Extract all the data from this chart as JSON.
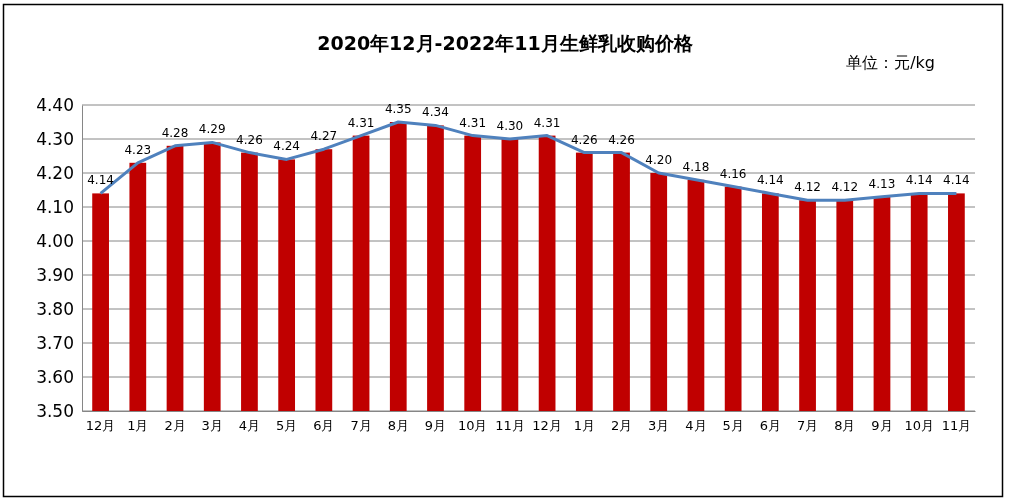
{
  "chart_data": {
    "type": "bar",
    "title": "2020年12月-2022年11月生鲜乳收购价格",
    "annotations": [
      "单位：元/kg"
    ],
    "categories": [
      "12月",
      "1月",
      "2月",
      "3月",
      "4月",
      "5月",
      "6月",
      "7月",
      "8月",
      "9月",
      "10月",
      "11月",
      "12月",
      "1月",
      "2月",
      "3月",
      "4月",
      "5月",
      "6月",
      "7月",
      "8月",
      "9月",
      "10月",
      "11月"
    ],
    "series": [
      {
        "color": "#c00000",
        "values": [
          4.14,
          4.23,
          4.28,
          4.29,
          4.26,
          4.24,
          4.27,
          4.31,
          4.35,
          4.34,
          4.31,
          4.3,
          4.31,
          4.26,
          4.26,
          4.2,
          4.18,
          4.16,
          4.14,
          4.12,
          4.12,
          4.13,
          4.14,
          4.14
        ]
      },
      {
        "type": "line",
        "color": "#4f81bd",
        "values": [
          4.14,
          4.23,
          4.28,
          4.29,
          4.26,
          4.24,
          4.27,
          4.31,
          4.35,
          4.34,
          4.31,
          4.3,
          4.31,
          4.26,
          4.26,
          4.2,
          4.18,
          4.16,
          4.14,
          4.12,
          4.12,
          4.13,
          4.14,
          4.14
        ],
        "value_labels": [
          "4.14",
          "4.23",
          "4.28",
          "4.29",
          "4.26",
          "4.24",
          "4.27",
          "4.31",
          "4.35",
          "4.34",
          "4.31",
          "4.30",
          "4.31",
          "4.26",
          "4.26",
          "4.20",
          "4.18",
          "4.16",
          "4.14",
          "4.12",
          "4.12",
          "4.13",
          "4.14",
          "4.14"
        ]
      }
    ],
    "ylim": [
      3.5,
      4.4
    ],
    "yticks": [
      {
        "value": 3.5,
        "label": "3.50"
      },
      {
        "value": 3.6,
        "label": "3.60"
      },
      {
        "value": 3.7,
        "label": "3.70"
      },
      {
        "value": 3.8,
        "label": "3.80"
      },
      {
        "value": 3.9,
        "label": "3.90"
      },
      {
        "value": 4.0,
        "label": "4.00"
      },
      {
        "value": 4.1,
        "label": "4.10"
      },
      {
        "value": 4.2,
        "label": "4.20"
      },
      {
        "value": 4.3,
        "label": "4.30"
      },
      {
        "value": 4.4,
        "label": "4.40"
      }
    ],
    "grid": "y",
    "marker": "none",
    "line_style": "solid"
  }
}
